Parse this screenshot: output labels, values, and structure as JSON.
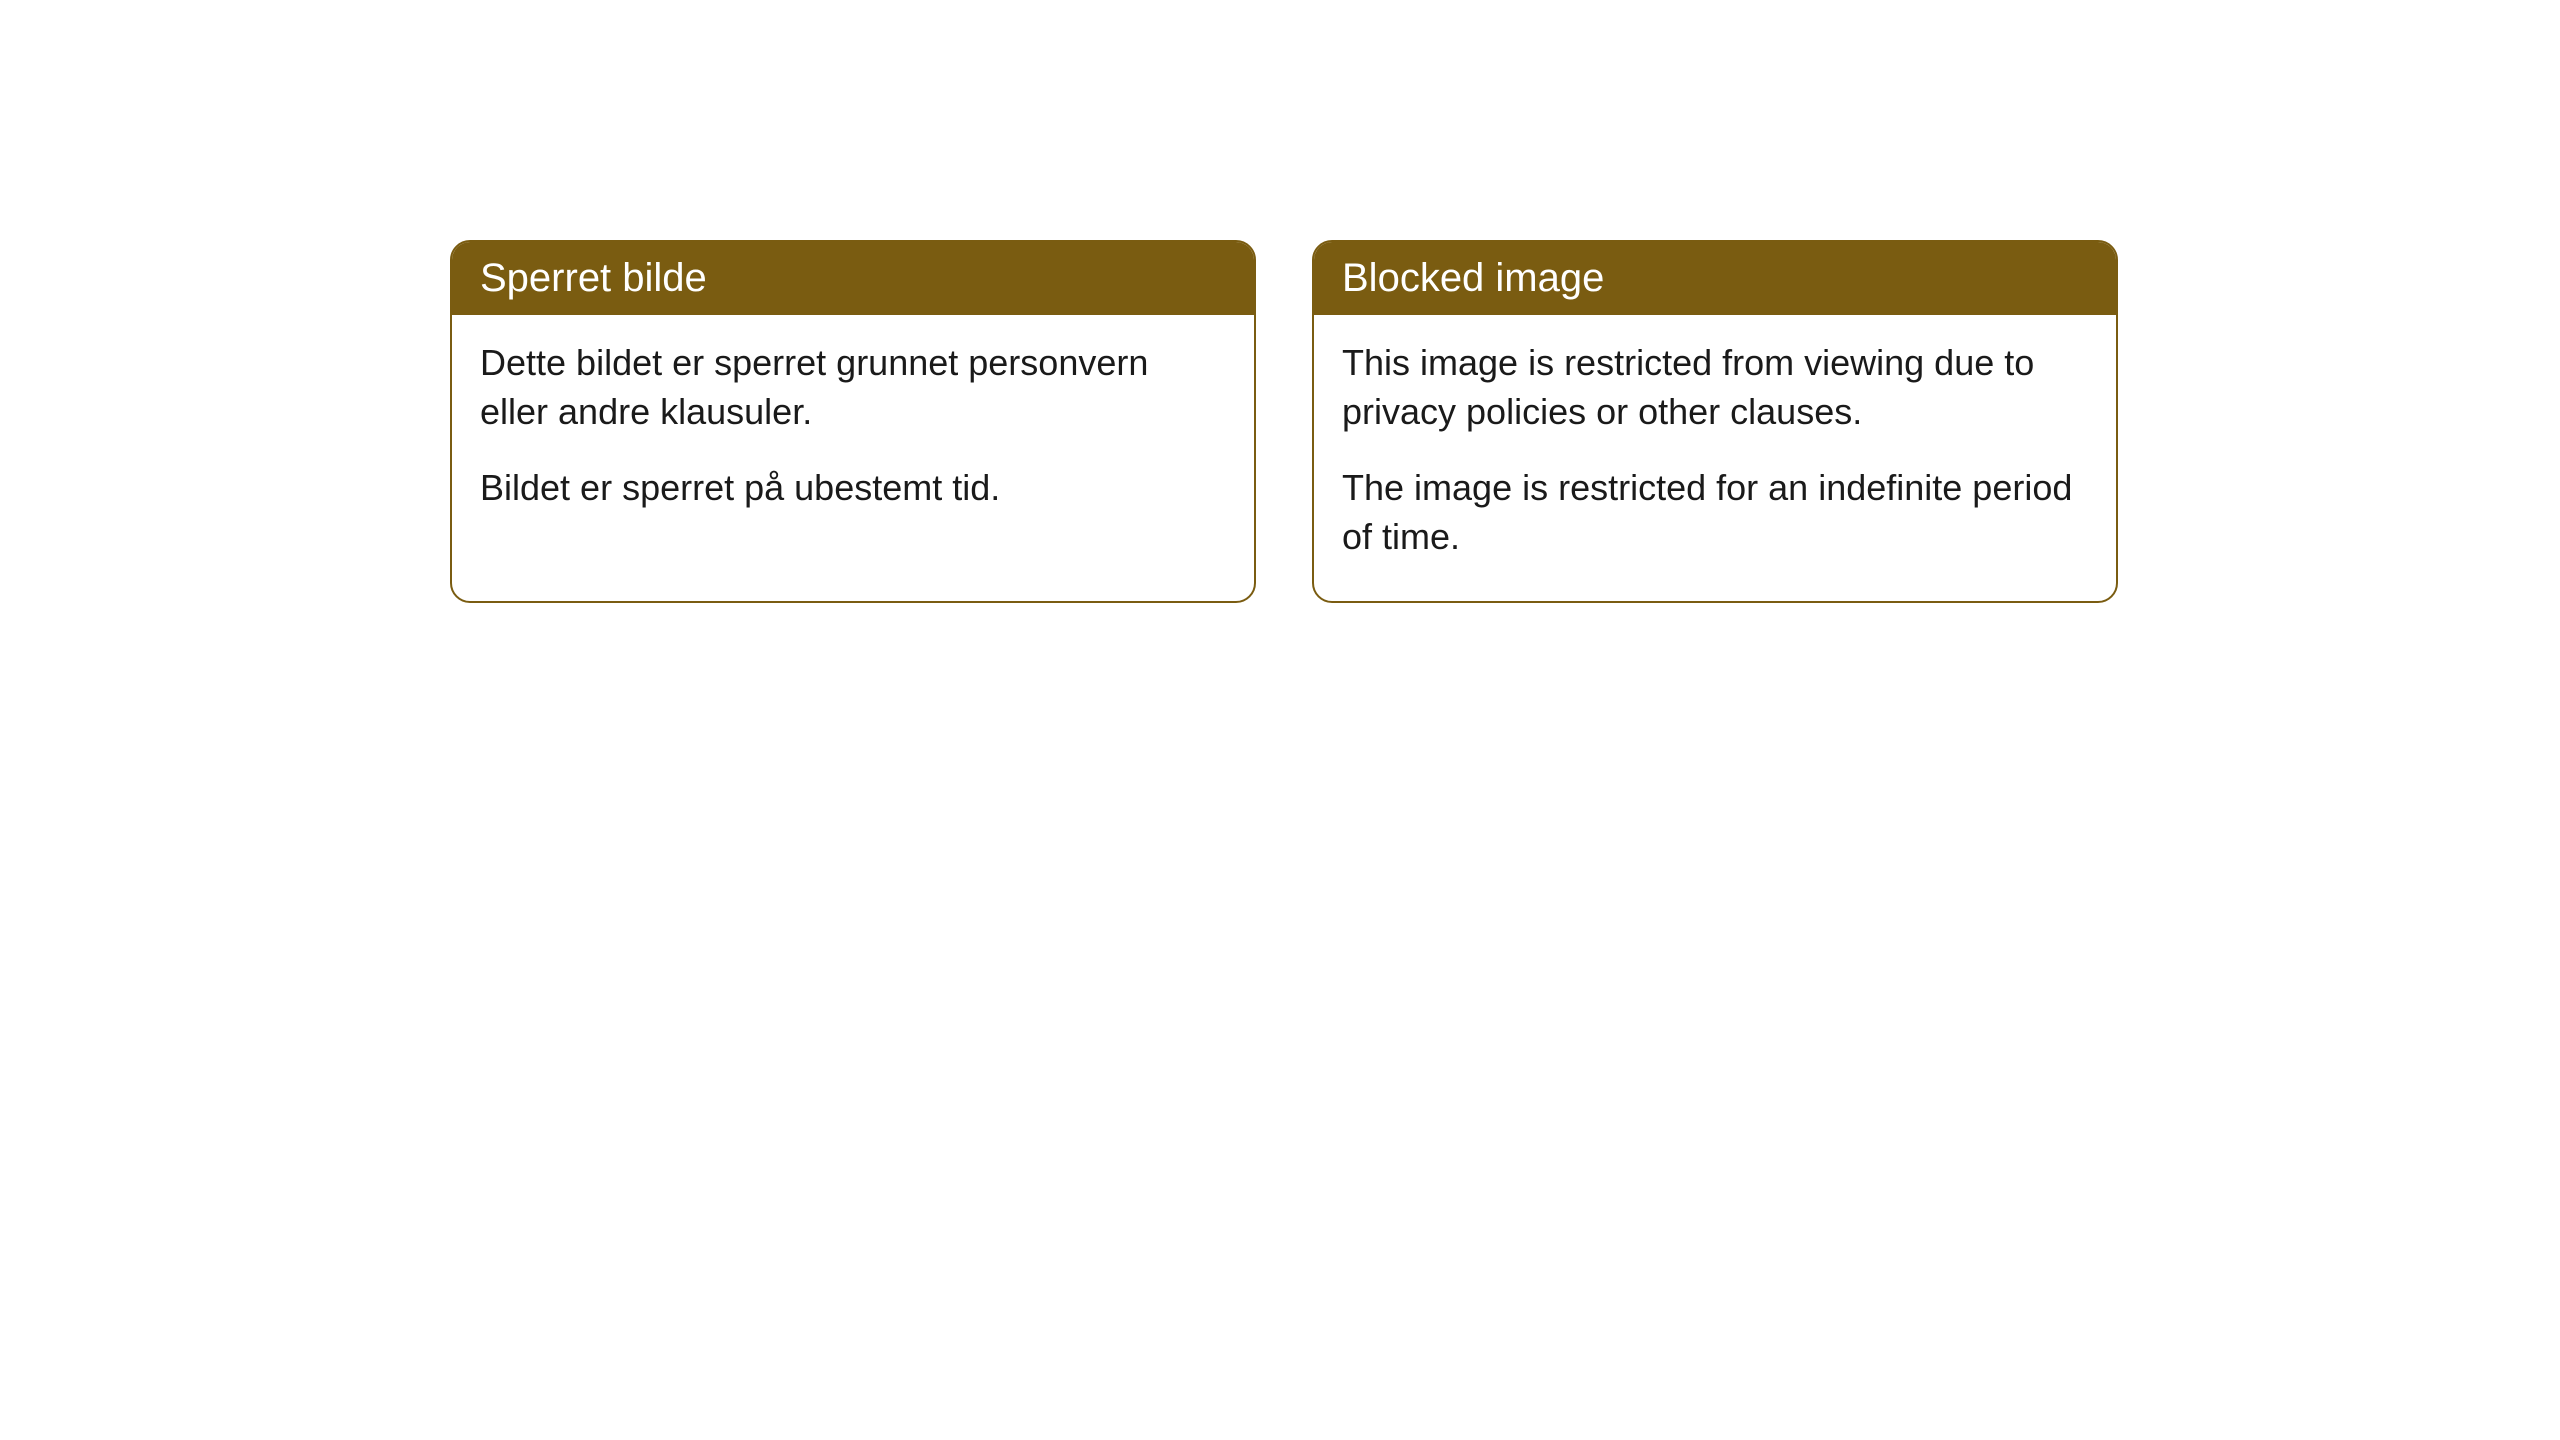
{
  "cards": [
    {
      "title": "Sperret bilde",
      "paragraph1": "Dette bildet er sperret grunnet personvern eller andre klausuler.",
      "paragraph2": "Bildet er sperret på ubestemt tid."
    },
    {
      "title": "Blocked image",
      "paragraph1": "This image is restricted from viewing due to privacy policies or other clauses.",
      "paragraph2": "The image is restricted for an indefinite period of time."
    }
  ],
  "styling": {
    "header_background": "#7a5c11",
    "header_text_color": "#ffffff",
    "border_color": "#7a5c11",
    "body_background": "#ffffff",
    "body_text_color": "#1a1a1a",
    "border_radius": 20,
    "title_fontsize": 40,
    "body_fontsize": 36
  }
}
